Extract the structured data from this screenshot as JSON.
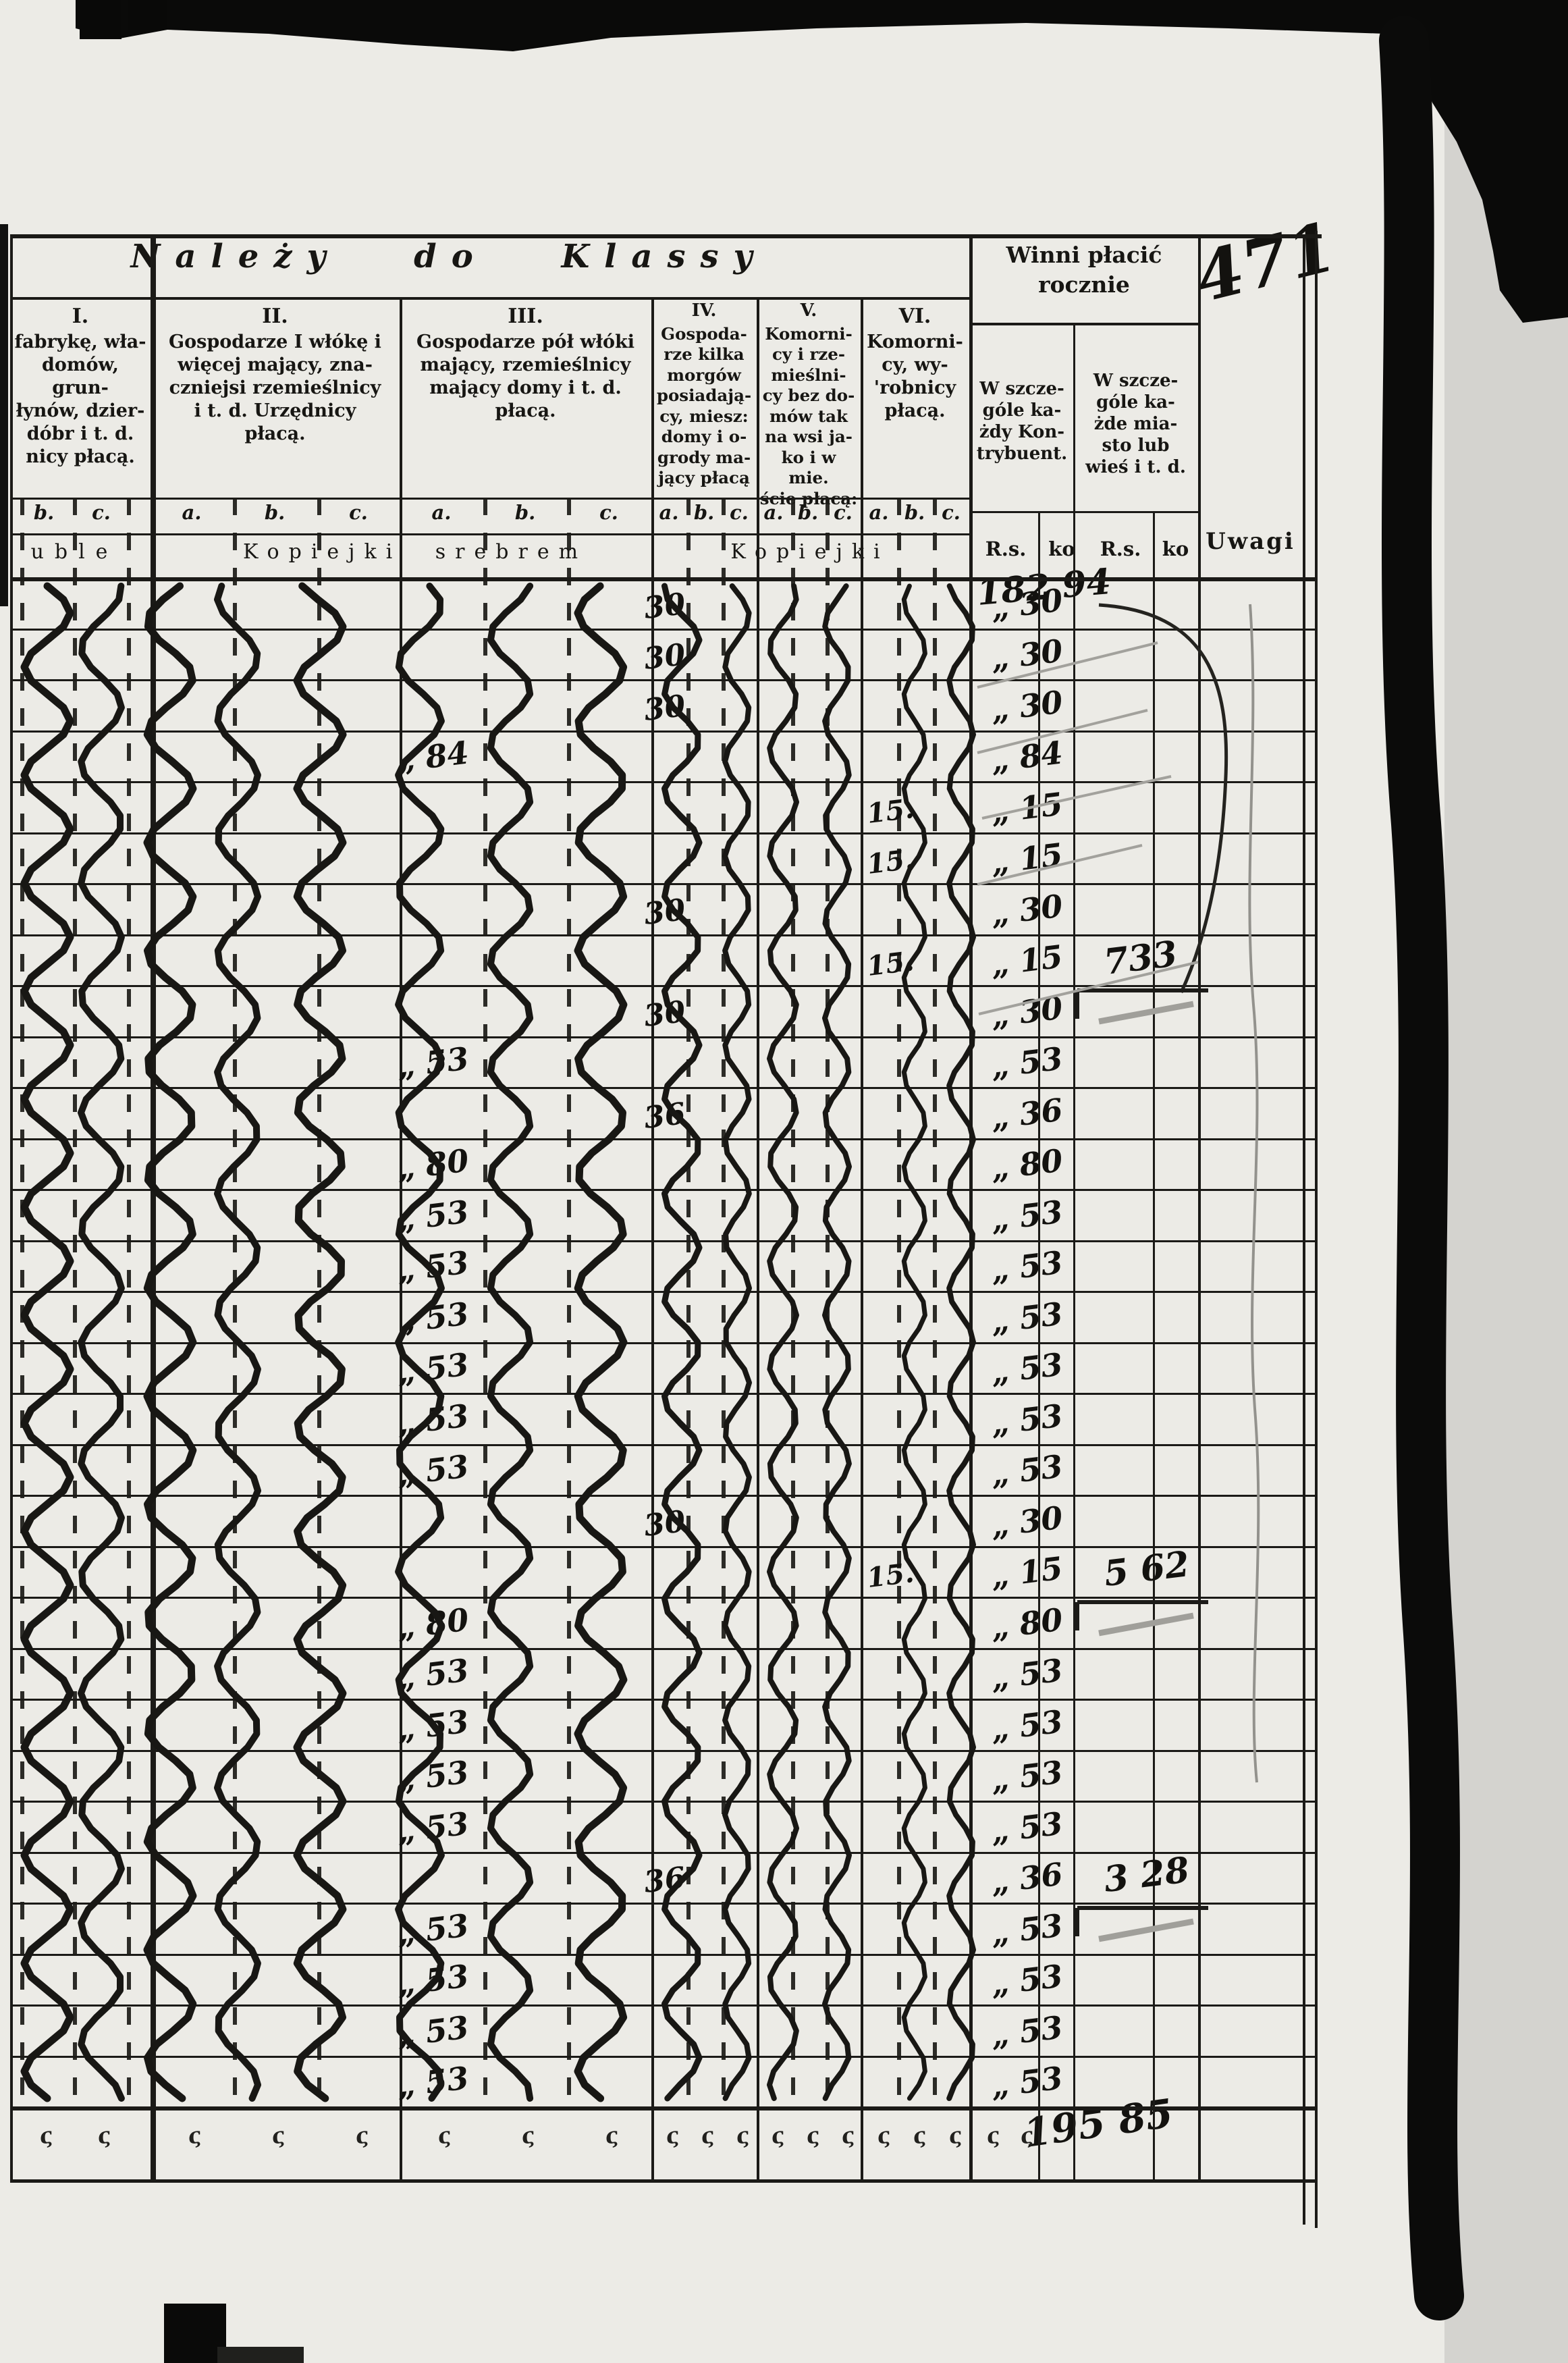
{
  "page": {
    "title": "Należy do Klassy",
    "page_number": "471",
    "remarks_header": "Uwagi",
    "winni": {
      "title_line1": "Winni płacić",
      "title_line2": "rocznie",
      "sub1_lines": [
        "W szcze-",
        "góle ka-",
        "żdy Kon-",
        "trybuent."
      ],
      "sub2_lines": [
        "W szcze-",
        "góle ka-",
        "żde mia-",
        "sto lub",
        "wieś i t. d."
      ],
      "unit_rs": "R.s.",
      "unit_ko": "ko"
    },
    "classes": [
      {
        "numeral": "I.",
        "lines": [
          "fabrykę, wła-",
          "domów, grun-",
          "łynów, dzier-",
          "dóbr i t. d.",
          "nicy płacą."
        ],
        "letters": [
          "b.",
          "c."
        ]
      },
      {
        "numeral": "II.",
        "lines": [
          "Gospodarze I włókę i",
          "więcej mający, zna-",
          "czniejsi rzemieślnicy",
          "i t. d. Urzędnicy",
          "płacą."
        ],
        "letters": [
          "a.",
          "b.",
          "c."
        ]
      },
      {
        "numeral": "III.",
        "lines": [
          "Gospodarze pół włóki",
          "mający, rzemieślnicy",
          "mający domy i t. d.",
          "płacą."
        ],
        "letters": [
          "a.",
          "b.",
          "c."
        ]
      },
      {
        "numeral": "IV.",
        "lines": [
          "Gospoda-",
          "rze kilka",
          "morgów",
          "posiadają-",
          "cy, miesz:",
          "domy i o-",
          "grody ma-",
          "jący płacą"
        ],
        "letters": [
          "a.",
          "b.",
          "c."
        ]
      },
      {
        "numeral": "V.",
        "lines": [
          "Komorni-",
          "cy i rze-",
          "mieślni-",
          "cy bez do-",
          "mów tak",
          "na wsi ja-",
          "ko i w mie.",
          "ście płacą:"
        ],
        "letters": [
          "a.",
          "b.",
          "c."
        ]
      },
      {
        "numeral": "VI.",
        "lines": [
          "Komorni-",
          "cy, wy-",
          "'robnicy",
          "płacą."
        ],
        "letters": [
          "a.",
          "b.",
          "c."
        ]
      }
    ],
    "currency_row": {
      "ruble_fragment": "uble",
      "kopiejki_srebrem": "Kopiejki srebrem",
      "kopiejki": "Kopiejki"
    },
    "totals": {
      "top_total": "182 94",
      "bottom_total": "195 85",
      "tick_glyph": "ς"
    },
    "ditto_note": "wavy hand-drawn ditto lines run down columns I–VI",
    "rows": [
      {
        "c3": "",
        "c4": "30",
        "c6": "",
        "w1": "„ 30",
        "w2": ""
      },
      {
        "c3": "",
        "c4": "30",
        "c6": "",
        "w1": "„ 30",
        "w2": ""
      },
      {
        "c3": "",
        "c4": "30",
        "c6": "",
        "w1": "„ 30",
        "w2": ""
      },
      {
        "c3": "„ 84",
        "c4": "",
        "c6": "",
        "w1": "„ 84",
        "w2": ""
      },
      {
        "c3": "",
        "c4": "",
        "c6": "15.",
        "w1": "„ 15",
        "w2": ""
      },
      {
        "c3": "",
        "c4": "",
        "c6": "15.",
        "w1": "„ 15",
        "w2": ""
      },
      {
        "c3": "",
        "c4": "30",
        "c6": "",
        "w1": "„ 30",
        "w2": ""
      },
      {
        "c3": "",
        "c4": "",
        "c6": "15.",
        "w1": "„ 15",
        "w2": "733"
      },
      {
        "c3": "",
        "c4": "30",
        "c6": "",
        "w1": "„ 30",
        "w2": ""
      },
      {
        "c3": "„ 53",
        "c4": "",
        "c6": "",
        "w1": "„ 53",
        "w2": ""
      },
      {
        "c3": "",
        "c4": "36",
        "c6": "",
        "w1": "„ 36",
        "w2": ""
      },
      {
        "c3": "„ 80",
        "c4": "",
        "c6": "",
        "w1": "„ 80",
        "w2": ""
      },
      {
        "c3": "„ 53",
        "c4": "",
        "c6": "",
        "w1": "„ 53",
        "w2": ""
      },
      {
        "c3": "„ 53",
        "c4": "",
        "c6": "",
        "w1": "„ 53",
        "w2": ""
      },
      {
        "c3": "„ 53",
        "c4": "",
        "c6": "",
        "w1": "„ 53",
        "w2": ""
      },
      {
        "c3": "„ 53",
        "c4": "",
        "c6": "",
        "w1": "„ 53",
        "w2": ""
      },
      {
        "c3": "„ 53",
        "c4": "",
        "c6": "",
        "w1": "„ 53",
        "w2": ""
      },
      {
        "c3": "„ 53",
        "c4": "",
        "c6": "",
        "w1": "„ 53",
        "w2": ""
      },
      {
        "c3": "",
        "c4": "30",
        "c6": "",
        "w1": "„ 30",
        "w2": ""
      },
      {
        "c3": "",
        "c4": "",
        "c6": "15.",
        "w1": "„ 15",
        "w2": "5 62"
      },
      {
        "c3": "„ 80",
        "c4": "",
        "c6": "",
        "w1": "„ 80",
        "w2": ""
      },
      {
        "c3": "„ 53",
        "c4": "",
        "c6": "",
        "w1": "„ 53",
        "w2": ""
      },
      {
        "c3": "„ 53",
        "c4": "",
        "c6": "",
        "w1": "„ 53",
        "w2": ""
      },
      {
        "c3": "„ 53",
        "c4": "",
        "c6": "",
        "w1": "„ 53",
        "w2": ""
      },
      {
        "c3": "„ 53",
        "c4": "",
        "c6": "",
        "w1": "„ 53",
        "w2": ""
      },
      {
        "c3": "",
        "c4": "36",
        "c6": "",
        "w1": "„ 36",
        "w2": "3 28"
      },
      {
        "c3": "„ 53",
        "c4": "",
        "c6": "",
        "w1": "„ 53",
        "w2": ""
      },
      {
        "c3": "„ 53",
        "c4": "",
        "c6": "",
        "w1": "„ 53",
        "w2": ""
      },
      {
        "c3": "„ 53",
        "c4": "",
        "c6": "",
        "w1": "„ 53",
        "w2": ""
      },
      {
        "c3": "„ 53",
        "c4": "",
        "c6": "",
        "w1": "„ 53",
        "w2": ""
      }
    ]
  }
}
